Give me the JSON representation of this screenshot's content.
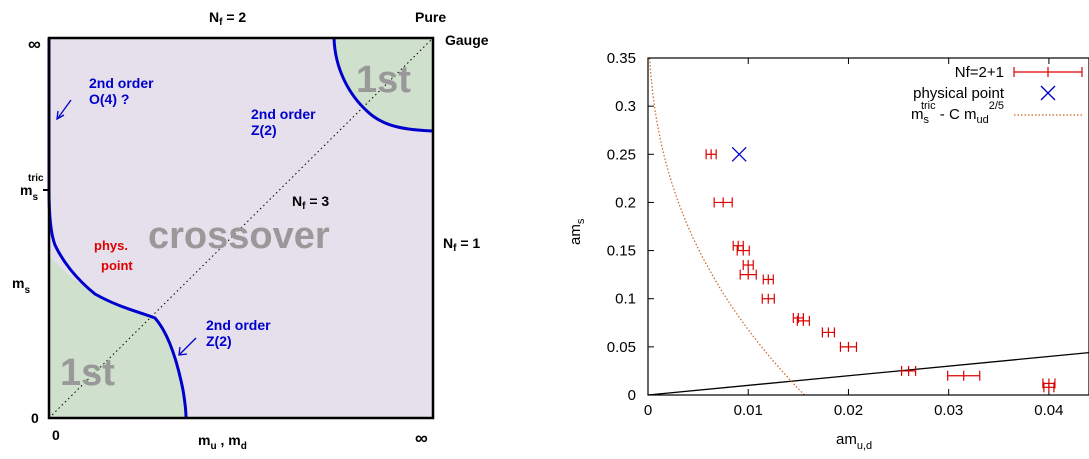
{
  "diagram": {
    "title_nf2": "N",
    "title_nf2_sub": "f",
    "title_nf2_eq": " = 2",
    "pure_label_1": "Pure",
    "pure_label_2": "Gauge",
    "infinity_y": "∞",
    "infinity_x": "∞",
    "zero_y": "0",
    "zero_x": "0",
    "ms_tric_main": "m",
    "ms_tric_sub": "s",
    "ms_tric_sup": "tric",
    "ms_label_main": "m",
    "ms_label_sub": "s",
    "x_label_main1": "m",
    "x_label_sub1": "u",
    "x_label_sep": " , ",
    "x_label_main2": "m",
    "x_label_sub2": "d",
    "nf3_main": "N",
    "nf3_sub": "f",
    "nf3_eq": " = 3",
    "nf1_main": "N",
    "nf1_sub": "f",
    "nf1_eq": " = 1",
    "region_crossover": "crossover",
    "region_first_top": "1st",
    "region_first_bottom": "1st",
    "left_line_label_1": "2nd order",
    "left_line_label_2": "O(4) ?",
    "top_curve_label_1": "2nd order",
    "top_curve_label_2": "Z(2)",
    "bottom_curve_label_1": "2nd order",
    "bottom_curve_label_2": "Z(2)",
    "phys_label_1": "phys.",
    "phys_label_2": "point",
    "colors": {
      "first_order_fill": "#cfe0cc",
      "crossover_fill": "#e6e0ec",
      "line_blue": "#0000cc",
      "phys_red": "#dd0000",
      "region_text": "#999999"
    }
  },
  "chart_data": {
    "type": "scatter",
    "ylabel_main": "am",
    "ylabel_sub": "s",
    "xlabel_main": "am",
    "xlabel_sub": "u,d",
    "xlim": [
      0,
      0.044
    ],
    "ylim": [
      0,
      0.35
    ],
    "x_ticks": [
      0,
      0.01,
      0.02,
      0.03,
      0.04
    ],
    "x_tick_labels": [
      "0",
      "0.01",
      "0.02",
      "0.03",
      "0.04"
    ],
    "y_ticks": [
      0,
      0.05,
      0.1,
      0.15,
      0.2,
      0.25,
      0.3,
      0.35
    ],
    "y_tick_labels": [
      "0",
      "0.05",
      "0.1",
      "0.15",
      "0.2",
      "0.25",
      "0.3",
      "0.35"
    ],
    "legend_position": "top-right",
    "series": [
      {
        "name": "Nf=2+1",
        "marker": "errorbar-plus",
        "color": "#dd0000",
        "points": [
          {
            "x": 0.0063,
            "y": 0.25,
            "xerr": 0.0005
          },
          {
            "x": 0.0075,
            "y": 0.2,
            "xerr": 0.0009
          },
          {
            "x": 0.009,
            "y": 0.155,
            "xerr": 0.0005
          },
          {
            "x": 0.0095,
            "y": 0.15,
            "xerr": 0.0006
          },
          {
            "x": 0.01,
            "y": 0.135,
            "xerr": 0.0005
          },
          {
            "x": 0.01,
            "y": 0.125,
            "xerr": 0.0008
          },
          {
            "x": 0.012,
            "y": 0.12,
            "xerr": 0.0005
          },
          {
            "x": 0.012,
            "y": 0.1,
            "xerr": 0.0006
          },
          {
            "x": 0.015,
            "y": 0.08,
            "xerr": 0.0005
          },
          {
            "x": 0.0155,
            "y": 0.077,
            "xerr": 0.0006
          },
          {
            "x": 0.018,
            "y": 0.065,
            "xerr": 0.0006
          },
          {
            "x": 0.02,
            "y": 0.05,
            "xerr": 0.0008
          },
          {
            "x": 0.026,
            "y": 0.025,
            "xerr": 0.0007
          },
          {
            "x": 0.0315,
            "y": 0.02,
            "xerr": 0.0016
          },
          {
            "x": 0.04,
            "y": 0.012,
            "xerr": 0.0006
          },
          {
            "x": 0.04,
            "y": 0.008,
            "xerr": 0.0005
          }
        ]
      },
      {
        "name": "physical point",
        "marker": "x",
        "color": "#0000cc",
        "points": [
          {
            "x": 0.0091,
            "y": 0.25
          }
        ]
      },
      {
        "name_main": "m",
        "name_sub_s": "s",
        "name_sup": "tric",
        "name_mid": " - C m",
        "name_sub_ud": "ud",
        "name_pow": "2/5",
        "style": "dotted",
        "color": "#cc6622",
        "x0": 0.0156,
        "y_top": 0.35
      },
      {
        "style": "solid",
        "color": "#000000",
        "line": [
          [
            0,
            0
          ],
          [
            0.044,
            0.044
          ]
        ]
      }
    ]
  }
}
